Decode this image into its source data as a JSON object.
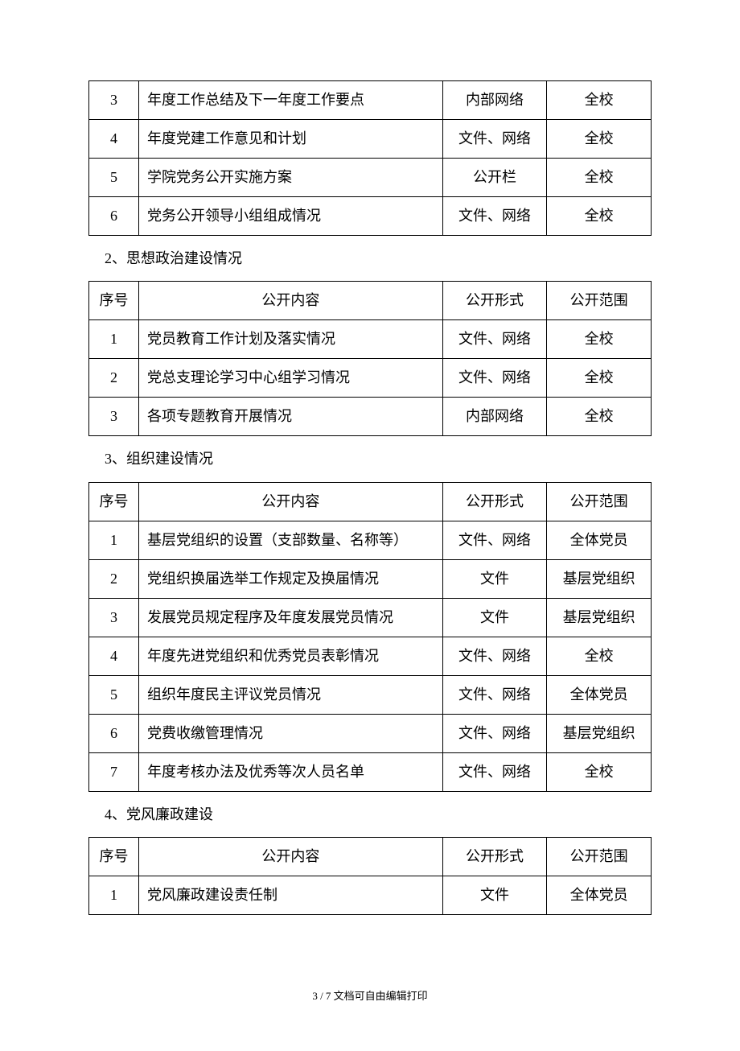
{
  "table1_continued": {
    "rows": [
      {
        "num": "3",
        "content": "年度工作总结及下一年度工作要点",
        "form": "内部网络",
        "scope": "全校"
      },
      {
        "num": "4",
        "content": "年度党建工作意见和计划",
        "form": "文件、网络",
        "scope": "全校"
      },
      {
        "num": "5",
        "content": "学院党务公开实施方案",
        "form": "公开栏",
        "scope": "全校"
      },
      {
        "num": "6",
        "content": "党务公开领导小组组成情况",
        "form": "文件、网络",
        "scope": "全校"
      }
    ]
  },
  "section2": {
    "heading": "2、思想政治建设情况",
    "headers": {
      "num": "序号",
      "content": "公开内容",
      "form": "公开形式",
      "scope": "公开范围"
    },
    "rows": [
      {
        "num": "1",
        "content": "党员教育工作计划及落实情况",
        "form": "文件、网络",
        "scope": "全校"
      },
      {
        "num": "2",
        "content": "党总支理论学习中心组学习情况",
        "form": "文件、网络",
        "scope": "全校"
      },
      {
        "num": "3",
        "content": "各项专题教育开展情况",
        "form": "内部网络",
        "scope": "全校"
      }
    ]
  },
  "section3": {
    "heading": "3、组织建设情况",
    "headers": {
      "num": "序号",
      "content": "公开内容",
      "form": "公开形式",
      "scope": "公开范围"
    },
    "rows": [
      {
        "num": "1",
        "content": "基层党组织的设置（支部数量、名称等）",
        "form": "文件、网络",
        "scope": "全体党员"
      },
      {
        "num": "2",
        "content": "党组织换届选举工作规定及换届情况",
        "form": "文件",
        "scope": "基层党组织"
      },
      {
        "num": "3",
        "content": "发展党员规定程序及年度发展党员情况",
        "form": "文件",
        "scope": "基层党组织"
      },
      {
        "num": "4",
        "content": "年度先进党组织和优秀党员表彰情况",
        "form": "文件、网络",
        "scope": "全校"
      },
      {
        "num": "5",
        "content": "组织年度民主评议党员情况",
        "form": "文件、网络",
        "scope": "全体党员"
      },
      {
        "num": "6",
        "content": "党费收缴管理情况",
        "form": "文件、网络",
        "scope": "基层党组织"
      },
      {
        "num": "7",
        "content": "年度考核办法及优秀等次人员名单",
        "form": "文件、网络",
        "scope": "全校"
      }
    ]
  },
  "section4": {
    "heading": "4、党风廉政建设",
    "headers": {
      "num": "序号",
      "content": "公开内容",
      "form": "公开形式",
      "scope": "公开范围"
    },
    "rows": [
      {
        "num": "1",
        "content": "党风廉政建设责任制",
        "form": "文件",
        "scope": "全体党员"
      }
    ]
  },
  "footer": "3 / 7 文档可自由编辑打印"
}
